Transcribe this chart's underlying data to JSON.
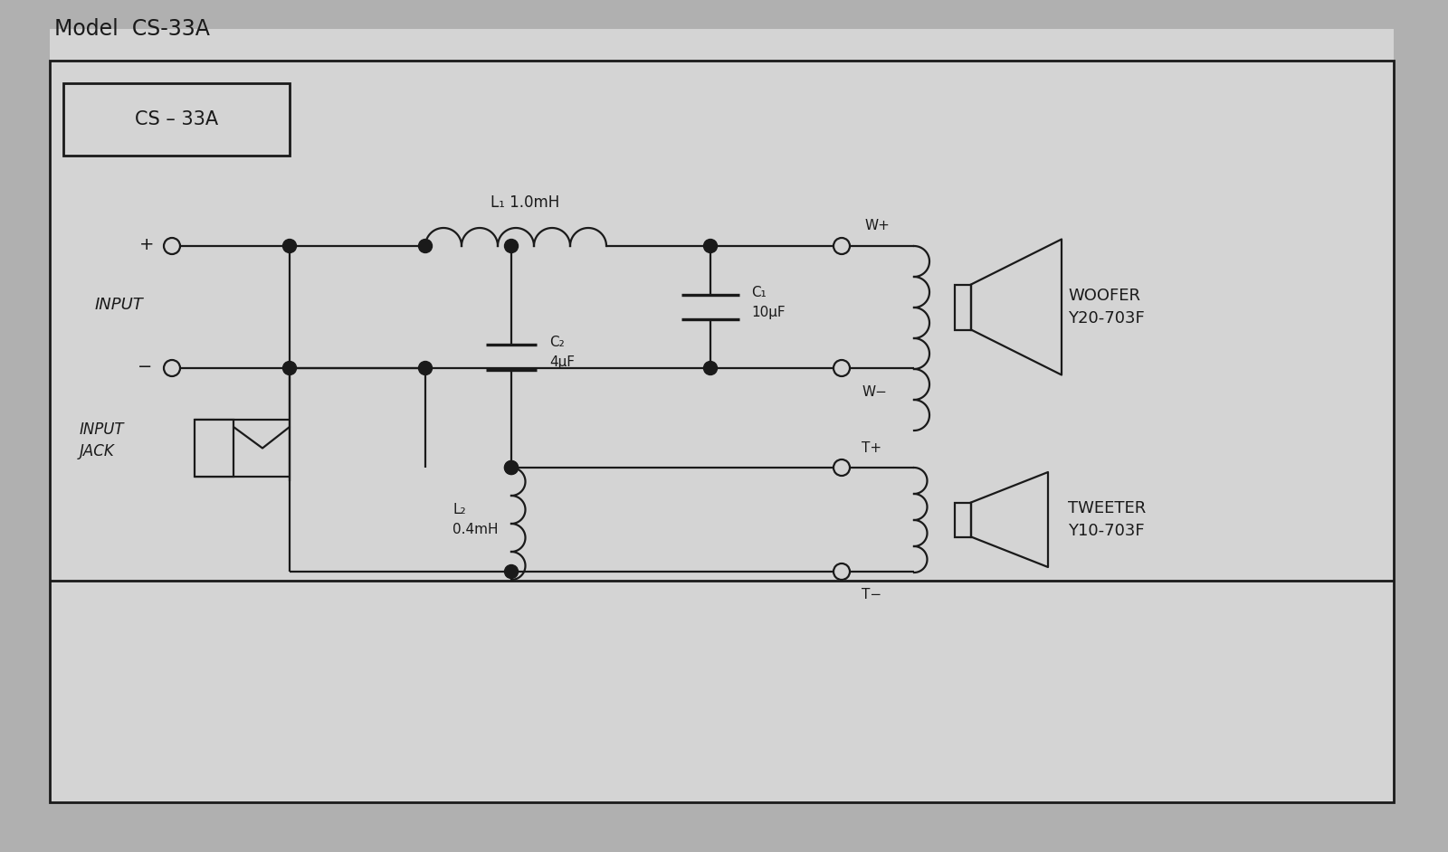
{
  "title": "Model  CS-33A",
  "model_label": "CS – 33A",
  "bg_color": "#c8c8c8",
  "inner_bg": "#e8e8e8",
  "line_color": "#1a1a1a",
  "text_color": "#1a1a1a",
  "fig_width": 16.0,
  "fig_height": 9.42,
  "woofer_label": "WOOFER\nY20-703F",
  "tweeter_label": "TWEETER\nY10-703F",
  "l1_label": "L₁ 1.0mH",
  "l2_label": "L₂\n0.4mH",
  "c1_label": "C₁\n10μF",
  "c2_label": "C₂\n4μF",
  "input_label": "INPUT",
  "input_jack_label": "INPUT\nJACK"
}
